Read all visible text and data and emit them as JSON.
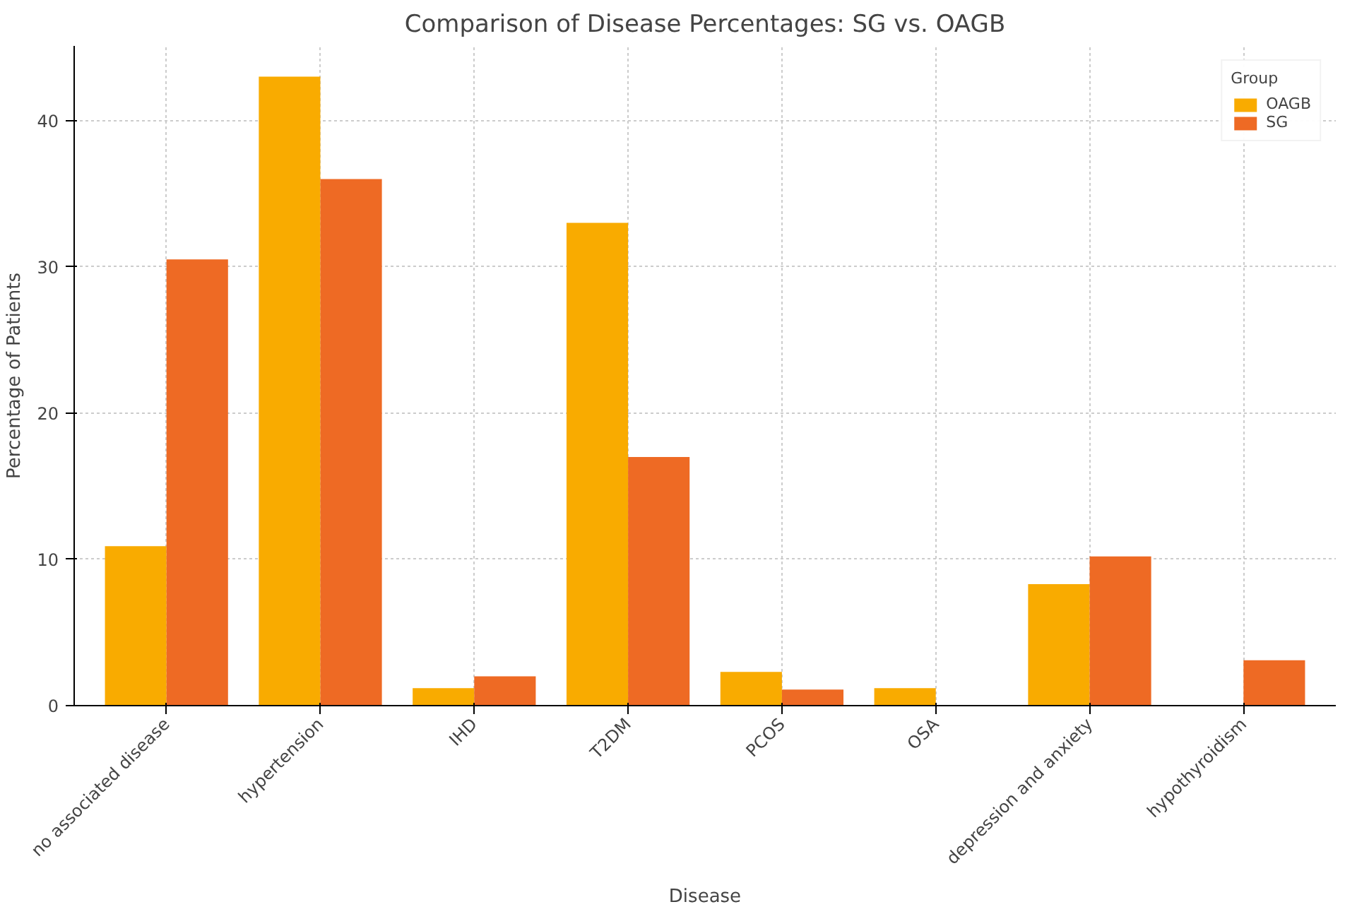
{
  "chart_data": {
    "type": "bar",
    "title": "Comparison of Disease Percentages: SG vs. OAGB",
    "xlabel": "Disease",
    "ylabel": "Percentage of Patients",
    "legend_title": "Group",
    "categories": [
      "no associated disease",
      "hypertension",
      "IHD",
      "T2DM",
      "PCOS",
      "OSA",
      "depression and anxiety",
      "hypothyroidism"
    ],
    "series": [
      {
        "name": "OAGB",
        "color": "#f9ab00",
        "values": [
          10.9,
          43.0,
          1.2,
          33.0,
          2.3,
          1.2,
          8.3,
          null
        ]
      },
      {
        "name": "SG",
        "color": "#ee6a24",
        "values": [
          30.5,
          36.0,
          2.0,
          17.0,
          1.1,
          null,
          10.2,
          3.1
        ]
      }
    ],
    "ylim": [
      0,
      45.1
    ],
    "yticks": [
      0,
      10,
      20,
      30,
      40
    ],
    "grid": true,
    "legend": "top right"
  }
}
